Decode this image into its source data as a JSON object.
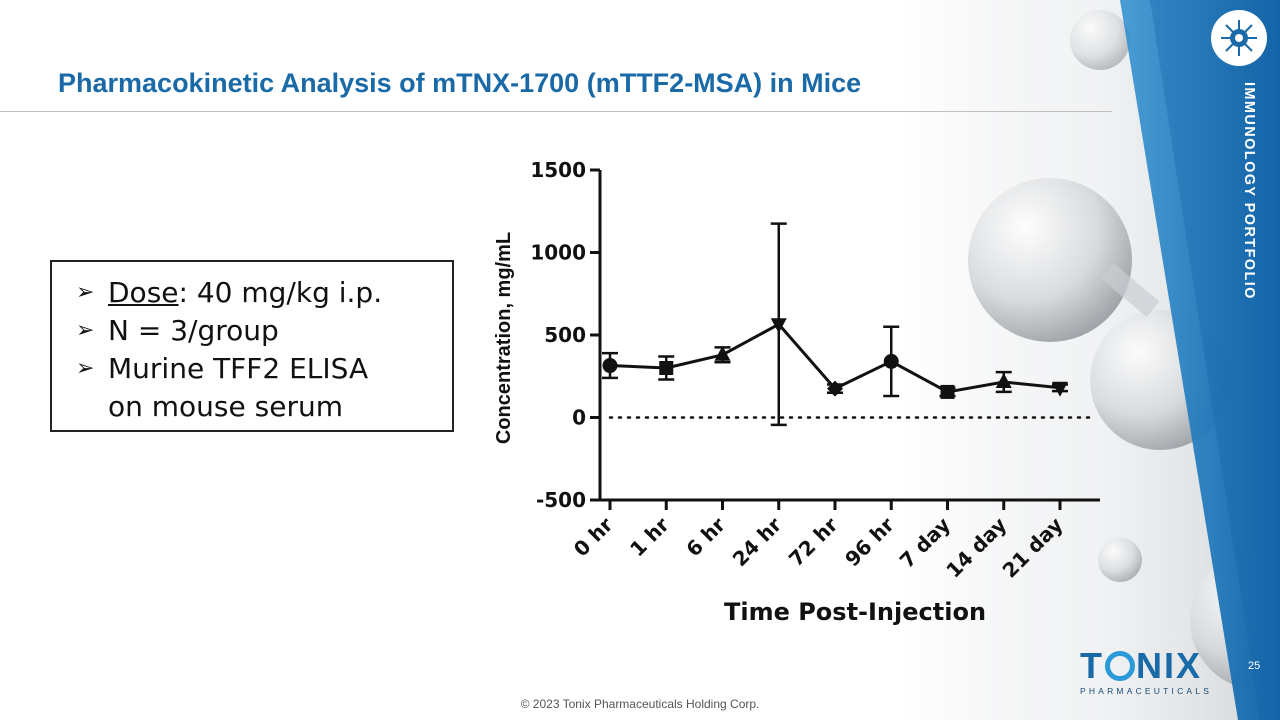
{
  "slide": {
    "title": "Pharmacokinetic Analysis of mTNX-1700 (mTTF2-MSA) in Mice",
    "side_label": "IMMUNOLOGY PORTFOLIO",
    "page_number": "25",
    "copyright": "© 2023 Tonix Pharmaceuticals Holding Corp.",
    "brand": {
      "name_t": "T",
      "name_rest": "NIX",
      "tagline": "PHARMACEUTICALS"
    },
    "colors": {
      "title": "#1a6aa8",
      "band": "#1565a8",
      "band_light": "#2d8fd0"
    }
  },
  "bullets": {
    "dose_label": "Dose",
    "dose_value": ": 40 mg/kg i.p.",
    "n": "N = 3/group",
    "assay_line1": "Murine TFF2 ELISA",
    "assay_line2": "on mouse serum"
  },
  "chart_data": {
    "type": "line",
    "title": "",
    "xlabel": "Time Post-Injection",
    "ylabel": "Concentration, mg/mL",
    "ylim": [
      -500,
      1500
    ],
    "yticks": [
      -500,
      0,
      500,
      1000,
      1500
    ],
    "categories": [
      "0 hr",
      "1 hr",
      "6 hr",
      "24 hr",
      "72 hr",
      "96 hr",
      "7 day",
      "14 day",
      "21 day"
    ],
    "series": [
      {
        "name": "mTNX-1700",
        "values": [
          315,
          300,
          380,
          565,
          175,
          340,
          155,
          215,
          180
        ],
        "error": [
          75,
          70,
          45,
          610,
          25,
          210,
          25,
          60,
          20
        ],
        "markers": [
          "circle",
          "square",
          "triangle",
          "triangle-down",
          "diamond",
          "circle",
          "square",
          "triangle",
          "triangle-down"
        ]
      }
    ],
    "reference_line": {
      "y": 0,
      "style": "dotted"
    }
  }
}
